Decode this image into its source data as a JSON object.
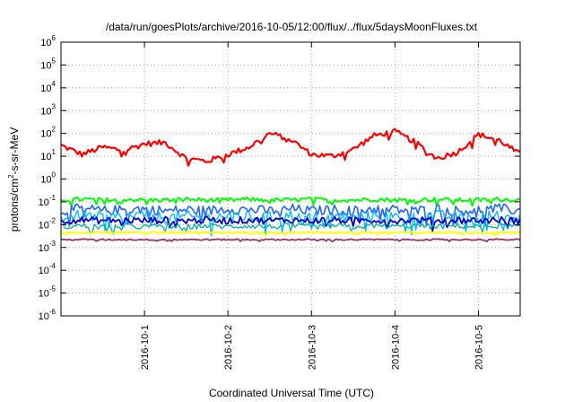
{
  "chart_data": {
    "type": "line",
    "title": "/data/run/goesPlots/archive/2016-10-05/12:00/flux/../flux/5daysMoonFluxes.txt",
    "xlabel": "Coordinated Universal Time (UTC)",
    "ylabel": "protons/cm²-s-sr-MeV",
    "ylabel_base": "protons/cm",
    "ylabel_sup": "2",
    "ylabel_rest": "-s-sr-MeV",
    "yscale": "log",
    "ylim": [
      1e-06,
      1000000.0
    ],
    "xlim": [
      "2016-09-30T00:00",
      "2016-10-05T12:00"
    ],
    "grid": true,
    "x_ticks": [
      {
        "label": "2016-10-1",
        "value": "2016-10-01T00:00"
      },
      {
        "label": "2016-10-2",
        "value": "2016-10-02T00:00"
      },
      {
        "label": "2016-10-3",
        "value": "2016-10-03T00:00"
      },
      {
        "label": "2016-10-4",
        "value": "2016-10-04T00:00"
      },
      {
        "label": "2016-10-5",
        "value": "2016-10-05T00:00"
      }
    ],
    "y_ticks": [
      {
        "base": "10",
        "exp": "-6",
        "value": -6
      },
      {
        "base": "10",
        "exp": "-5",
        "value": -5
      },
      {
        "base": "10",
        "exp": "-4",
        "value": -4
      },
      {
        "base": "10",
        "exp": "-3",
        "value": -3
      },
      {
        "base": "10",
        "exp": "-2",
        "value": -2
      },
      {
        "base": "10",
        "exp": "-1",
        "value": -1
      },
      {
        "base": "10",
        "exp": "0",
        "value": 0
      },
      {
        "base": "10",
        "exp": "1",
        "value": 1
      },
      {
        "base": "10",
        "exp": "2",
        "value": 2
      },
      {
        "base": "10",
        "exp": "3",
        "value": 3
      },
      {
        "base": "10",
        "exp": "4",
        "value": 4
      },
      {
        "base": "10",
        "exp": "5",
        "value": 5
      },
      {
        "base": "10",
        "exp": "6",
        "value": 6
      }
    ],
    "x_hours": [
      0,
      6,
      12,
      18,
      24,
      30,
      36,
      42,
      48,
      54,
      60,
      66,
      72,
      78,
      84,
      90,
      96,
      102,
      108,
      114,
      120,
      126,
      132
    ],
    "series": [
      {
        "color": "#ff0000",
        "width": 2.2,
        "jitter": 0.12,
        "values": [
          30,
          12,
          25,
          18,
          35,
          40,
          8,
          6,
          12,
          25,
          100,
          55,
          12,
          10,
          20,
          80,
          120,
          40,
          8,
          15,
          90,
          50,
          12
        ]
      },
      {
        "color": "#00ff00",
        "width": 2,
        "jitter": 0.09,
        "values": [
          0.12,
          0.13,
          0.12,
          0.13,
          0.12,
          0.12,
          0.13,
          0.12,
          0.12,
          0.13,
          0.12,
          0.12,
          0.13,
          0.12,
          0.12,
          0.13,
          0.12,
          0.12,
          0.13,
          0.12,
          0.12,
          0.13,
          0.12
        ]
      },
      {
        "color": "#2266ff",
        "width": 1.6,
        "jitter": 0.22,
        "values": [
          0.04,
          0.05,
          0.04,
          0.045,
          0.05,
          0.04,
          0.045,
          0.04,
          0.05,
          0.045,
          0.04,
          0.05,
          0.04,
          0.045,
          0.04,
          0.05,
          0.045,
          0.04,
          0.05,
          0.04,
          0.045,
          0.05,
          0.04
        ]
      },
      {
        "color": "#00bbff",
        "width": 1.4,
        "jitter": 0.25,
        "values": [
          0.02,
          0.025,
          0.02,
          0.022,
          0.025,
          0.02,
          0.022,
          0.02,
          0.025,
          0.022,
          0.02,
          0.025,
          0.02,
          0.022,
          0.02,
          0.025,
          0.022,
          0.02,
          0.025,
          0.02,
          0.022,
          0.025,
          0.02
        ]
      },
      {
        "color": "#0000cc",
        "width": 1.8,
        "jitter": 0.15,
        "values": [
          0.015,
          0.016,
          0.015,
          0.016,
          0.015,
          0.016,
          0.015,
          0.016,
          0.015,
          0.016,
          0.015,
          0.016,
          0.015,
          0.016,
          0.015,
          0.016,
          0.015,
          0.016,
          0.015,
          0.016,
          0.015,
          0.016,
          0.015
        ]
      },
      {
        "color": "#00b0a0",
        "width": 1.3,
        "jitter": 0.12,
        "values": [
          0.008,
          0.009,
          0.008,
          0.009,
          0.008,
          0.009,
          0.008,
          0.009,
          0.008,
          0.009,
          0.008,
          0.009,
          0.008,
          0.009,
          0.008,
          0.009,
          0.008,
          0.009,
          0.008,
          0.009,
          0.008,
          0.009,
          0.008
        ]
      },
      {
        "color": "#ffff00",
        "width": 2,
        "jitter": 0.04,
        "values": [
          0.0045,
          0.0045,
          0.0045,
          0.0045,
          0.0045,
          0.0045,
          0.0045,
          0.0045,
          0.0045,
          0.0045,
          0.0045,
          0.0045,
          0.0045,
          0.0045,
          0.0045,
          0.0045,
          0.0045,
          0.0045,
          0.0045,
          0.0045,
          0.0045,
          0.0045,
          0.0045
        ]
      },
      {
        "color": "#993366",
        "width": 1.8,
        "jitter": 0.03,
        "values": [
          0.0022,
          0.0022,
          0.0022,
          0.0022,
          0.0022,
          0.0022,
          0.0022,
          0.0022,
          0.0022,
          0.0022,
          0.0022,
          0.0022,
          0.0022,
          0.0022,
          0.0022,
          0.0022,
          0.0022,
          0.0022,
          0.0022,
          0.0022,
          0.0022,
          0.0022,
          0.0022
        ]
      }
    ]
  }
}
